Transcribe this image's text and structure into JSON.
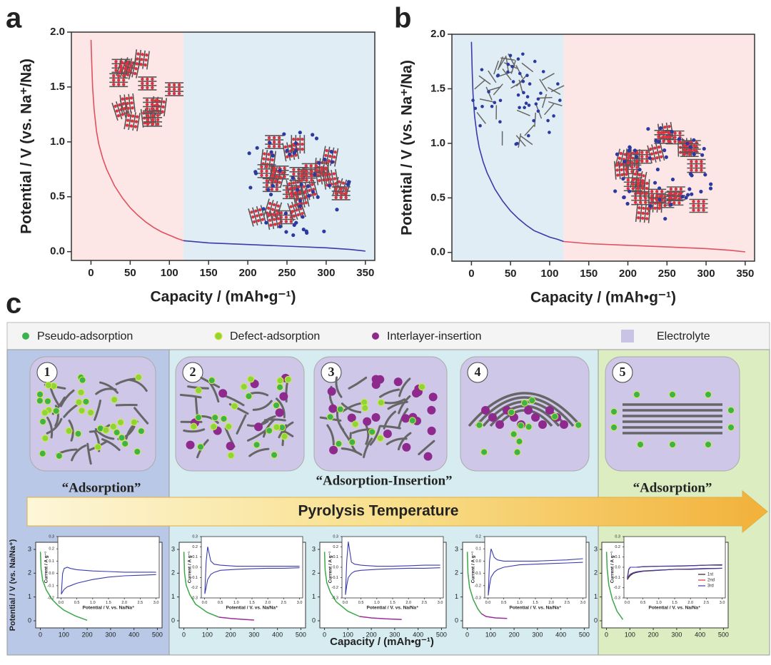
{
  "panels": [
    {
      "label": "a",
      "chart": {
        "type": "line",
        "xlabel": "Capacity / (mAh•g⁻¹)",
        "ylabel": "Potential / V (vs. Na⁺/Na)",
        "xlim": [
          -25,
          362
        ],
        "ylim": [
          -0.08,
          2.0
        ],
        "xticks": [
          0,
          50,
          100,
          150,
          200,
          250,
          300,
          350
        ],
        "yticks": [
          {
            "value": 0,
            "label": "0.0"
          },
          0.5,
          {
            "value": 1,
            "label": "1.0"
          },
          1.5,
          {
            "value": 2,
            "label": "2.0"
          }
        ],
        "regions": [
          {
            "xlim": [
              -25,
              118
            ],
            "color": "#fde6e6"
          },
          {
            "xlim": [
              118,
              362
            ],
            "color": "#e1edf5"
          }
        ],
        "series": [
          {
            "color": "#e0505e",
            "x": [
              0,
              1,
              2,
              4,
              7,
              10,
              15,
              20,
              30,
              40,
              50,
              60,
              70,
              80,
              90,
              100,
              110,
              118
            ],
            "values": [
              1.93,
              1.7,
              1.5,
              1.3,
              1.1,
              0.98,
              0.85,
              0.75,
              0.6,
              0.49,
              0.4,
              0.33,
              0.27,
              0.22,
              0.18,
              0.15,
              0.12,
              0.1
            ]
          },
          {
            "color": "#3a3aa8",
            "x": [
              118,
              150,
              200,
              250,
              300,
              330,
              350
            ],
            "values": [
              0.1,
              0.08,
              0.065,
              0.05,
              0.035,
              0.02,
              0.005
            ]
          }
        ]
      }
    },
    {
      "label": "b",
      "chart": {
        "type": "line",
        "xlabel": "Capacity / (mAh•g⁻¹)",
        "ylabel": "Potential  / V (vs. Na⁺/Na)",
        "xlim": [
          -25,
          362
        ],
        "ylim": [
          -0.08,
          2.0
        ],
        "xticks": [
          0,
          50,
          100,
          150,
          200,
          250,
          300,
          350
        ],
        "yticks": [
          {
            "value": 0,
            "label": "0.0"
          },
          0.5,
          {
            "value": 1,
            "label": "1.0"
          },
          1.5,
          {
            "value": 2,
            "label": "2.0"
          }
        ],
        "regions": [
          {
            "xlim": [
              -25,
              118
            ],
            "color": "#e1edf5"
          },
          {
            "xlim": [
              118,
              362
            ],
            "color": "#fde6e6"
          }
        ],
        "series": [
          {
            "color": "#3a3aa8",
            "x": [
              0,
              1,
              2,
              4,
              7,
              10,
              15,
              20,
              30,
              40,
              50,
              60,
              70,
              80,
              90,
              100,
              110,
              118
            ],
            "values": [
              1.93,
              1.65,
              1.45,
              1.25,
              1.08,
              0.96,
              0.83,
              0.73,
              0.58,
              0.47,
              0.38,
              0.31,
              0.25,
              0.2,
              0.17,
              0.14,
              0.12,
              0.1
            ]
          },
          {
            "color": "#e0505e",
            "x": [
              118,
              150,
              200,
              250,
              300,
              330,
              350
            ],
            "values": [
              0.1,
              0.08,
              0.065,
              0.05,
              0.035,
              0.02,
              0.005
            ]
          }
        ]
      }
    }
  ],
  "panel_c_label": "c",
  "legend": [
    {
      "label": "Pseudo-adsorption",
      "color": "#3cb44b"
    },
    {
      "label": "Defect-adsorption",
      "color": "#8cd63a"
    },
    {
      "label": "Interlayer-insertion",
      "color": "#8e2a8e"
    },
    {
      "label": "Electrolyte",
      "color": "#c9c3e6"
    }
  ],
  "stages": [
    "1",
    "2",
    "3",
    "4",
    "5"
  ],
  "groups": [
    "“Adsorption”",
    "“Adsorption-Insertion”",
    "“Adsorption”"
  ],
  "arrow_label": "Pyrolysis Temperature",
  "cv_ylabel": "Potential / V (vs. Na/Na⁺)",
  "cv_xlabel": "Capacity / (mAh•g⁻¹)",
  "small_charts": [
    {
      "type": "line",
      "xlim": [
        -20,
        520
      ],
      "ylim": [
        -0.3,
        3.3
      ],
      "xticks": [
        0,
        100,
        200,
        300,
        400,
        500
      ],
      "yticks": [
        0,
        1,
        2,
        3
      ],
      "series": [
        {
          "color": "#3ca84a",
          "x": [
            0,
            3,
            10,
            25,
            50,
            75,
            100,
            150,
            200
          ],
          "values": [
            2.9,
            2.2,
            1.7,
            1.3,
            0.9,
            0.65,
            0.45,
            0.2,
            0.02
          ]
        }
      ],
      "inset": {
        "type": "line",
        "ylabel": "Current / A g⁻¹",
        "xlabel": "Potential / V. vs. Na/Na⁺",
        "xlim": [
          -0.1,
          3.1
        ],
        "ylim": [
          -0.2,
          0.3
        ],
        "xticks": [
          {
            "value": 0,
            "label": "0.0"
          },
          0.5,
          {
            "value": 1,
            "label": "1.0"
          },
          1.5,
          {
            "value": 2,
            "label": "2.0"
          },
          2.5,
          {
            "value": 3,
            "label": "3.0"
          }
        ],
        "yticks": [
          -0.2,
          -0.1,
          {
            "value": 0,
            "label": "0.0"
          },
          0.1,
          0.2,
          0.3
        ],
        "x": [
          3,
          2.5,
          2,
          1.5,
          1,
          0.5,
          0.3,
          0.2,
          0.1,
          0.05,
          0.01,
          0.05,
          0.1,
          0.2,
          0.3,
          0.5,
          1,
          1.5,
          2,
          2.5,
          3
        ],
        "series": [
          {
            "color": "#3b3bb0",
            "values": [
              -0.01,
              -0.015,
              -0.02,
              -0.03,
              -0.05,
              -0.08,
              -0.1,
              -0.11,
              -0.13,
              -0.15,
              -0.17,
              0.0,
              0.04,
              0.05,
              0.04,
              0.03,
              0.02,
              0.015,
              0.01,
              0.01,
              0.01
            ]
          }
        ]
      }
    },
    {
      "type": "line",
      "xlim": [
        -20,
        520
      ],
      "ylim": [
        -0.3,
        3.3
      ],
      "xticks": [
        0,
        100,
        200,
        300,
        400,
        500
      ],
      "yticks": [
        0,
        1,
        2,
        3
      ],
      "series": [
        {
          "color": "#3ca84a",
          "x": [
            0,
            3,
            10,
            25,
            50,
            100,
            150
          ],
          "values": [
            2.9,
            2.0,
            1.5,
            1.1,
            0.7,
            0.35,
            0.15
          ]
        },
        {
          "color": "#a02a9a",
          "x": [
            150,
            200,
            250,
            300
          ],
          "values": [
            0.15,
            0.1,
            0.06,
            0.03
          ]
        }
      ],
      "inset": {
        "type": "line",
        "ylabel": "Current / A g⁻¹",
        "xlabel": "Potential / V. vs. Na/Na⁺",
        "xlim": [
          -0.1,
          3.1
        ],
        "ylim": [
          -0.3,
          0.3
        ],
        "xticks": [
          {
            "value": 0,
            "label": "0.0"
          },
          0.5,
          {
            "value": 1,
            "label": "1.0"
          },
          1.5,
          {
            "value": 2,
            "label": "2.0"
          },
          2.5,
          {
            "value": 3,
            "label": "3.0"
          }
        ],
        "yticks": [
          -0.3,
          -0.2,
          -0.1,
          {
            "value": 0,
            "label": "0.0"
          },
          0.1,
          0.2,
          0.3
        ],
        "x": [
          3,
          2.5,
          2,
          1.5,
          1,
          0.5,
          0.3,
          0.2,
          0.1,
          0.05,
          0.01,
          0.05,
          0.1,
          0.2,
          0.3,
          0.5,
          1,
          1.5,
          2,
          2.5,
          3
        ],
        "series": [
          {
            "color": "#3b3bb0",
            "values": [
              -0.005,
              -0.01,
              -0.01,
              -0.015,
              -0.02,
              -0.03,
              -0.05,
              -0.07,
              -0.12,
              -0.2,
              -0.26,
              0.05,
              0.2,
              0.06,
              0.03,
              0.02,
              0.01,
              0.01,
              0.01,
              0.01,
              0.01
            ]
          }
        ]
      }
    },
    {
      "type": "line",
      "xlim": [
        -20,
        520
      ],
      "ylim": [
        -0.3,
        3.3
      ],
      "xticks": [
        0,
        100,
        200,
        300,
        400,
        500
      ],
      "yticks": [
        0,
        1,
        2,
        3
      ],
      "series": [
        {
          "color": "#3ca84a",
          "x": [
            0,
            3,
            10,
            25,
            50,
            100,
            150
          ],
          "values": [
            2.9,
            2.1,
            1.6,
            1.2,
            0.8,
            0.4,
            0.18
          ]
        },
        {
          "color": "#a02a9a",
          "x": [
            150,
            200,
            260,
            330
          ],
          "values": [
            0.18,
            0.12,
            0.08,
            0.05
          ]
        }
      ],
      "inset": {
        "type": "line",
        "ylabel": "Current / A g⁻¹",
        "xlabel": "Potential / V. vs. Na/Na⁺",
        "xlim": [
          -0.1,
          3.1
        ],
        "ylim": [
          -0.3,
          0.3
        ],
        "xticks": [
          {
            "value": 0,
            "label": "0.0"
          },
          0.5,
          {
            "value": 1,
            "label": "1.0"
          },
          1.5,
          {
            "value": 2,
            "label": "2.0"
          },
          2.5,
          {
            "value": 3,
            "label": "3.0"
          }
        ],
        "yticks": [
          -0.3,
          -0.2,
          -0.1,
          {
            "value": 0,
            "label": "0.0"
          },
          0.1,
          0.2,
          0.3
        ],
        "x": [
          3,
          2.5,
          2,
          1.5,
          1,
          0.5,
          0.3,
          0.2,
          0.1,
          0.05,
          0.01,
          0.05,
          0.1,
          0.2,
          0.3,
          0.5,
          1,
          1.5,
          2,
          2.5,
          3
        ],
        "series": [
          {
            "color": "#3b3bb0",
            "values": [
              -0.005,
              -0.01,
              -0.01,
              -0.015,
              -0.02,
              -0.03,
              -0.04,
              -0.06,
              -0.1,
              -0.18,
              -0.27,
              0.06,
              0.25,
              0.05,
              0.03,
              0.02,
              0.01,
              0.01,
              0.015,
              0.02,
              0.02
            ]
          }
        ]
      }
    },
    {
      "type": "line",
      "xlim": [
        -20,
        520
      ],
      "ylim": [
        -0.3,
        3.3
      ],
      "xticks": [
        0,
        100,
        200,
        300,
        400,
        500
      ],
      "yticks": [
        0,
        1,
        2,
        3
      ],
      "series": [
        {
          "color": "#3ca84a",
          "x": [
            0,
            3,
            10,
            25,
            45,
            60
          ],
          "values": [
            2.9,
            2.0,
            1.4,
            0.9,
            0.5,
            0.3
          ]
        },
        {
          "color": "#a02a9a",
          "x": [
            60,
            80,
            120,
            170
          ],
          "values": [
            0.3,
            0.18,
            0.12,
            0.1
          ]
        }
      ],
      "inset": {
        "type": "line",
        "ylabel": "Current / A g⁻¹",
        "xlabel": "Potential / V. vs. Na/Na⁺",
        "xlim": [
          -0.1,
          3.1
        ],
        "ylim": [
          -0.3,
          0.2
        ],
        "xticks": [
          {
            "value": 0,
            "label": "0.0"
          },
          0.5,
          {
            "value": 1,
            "label": "1.0"
          },
          1.5,
          {
            "value": 2,
            "label": "2.0"
          },
          2.5,
          {
            "value": 3,
            "label": "3.0"
          }
        ],
        "yticks": [
          -0.3,
          -0.2,
          -0.1,
          {
            "value": 0,
            "label": "0.0"
          },
          0.1,
          0.2
        ],
        "x": [
          3,
          2.5,
          2,
          1.5,
          1,
          0.5,
          0.3,
          0.2,
          0.1,
          0.05,
          0.01,
          0.05,
          0.1,
          0.2,
          0.3,
          0.5,
          1,
          1.5,
          2,
          2.5,
          3
        ],
        "series": [
          {
            "color": "#3b3bb0",
            "values": [
              -0.01,
              -0.015,
              -0.02,
              -0.025,
              -0.03,
              -0.05,
              -0.07,
              -0.09,
              -0.13,
              -0.2,
              -0.28,
              0.0,
              0.1,
              0.03,
              0.01,
              0.0,
              0.0,
              0.0,
              0.005,
              0.01,
              0.02
            ]
          }
        ]
      }
    },
    {
      "type": "line",
      "xlim": [
        -20,
        520
      ],
      "ylim": [
        -0.3,
        3.3
      ],
      "xticks": [
        0,
        100,
        200,
        300,
        400,
        500
      ],
      "yticks": [
        0,
        1,
        2,
        3
      ],
      "series": [
        {
          "color": "#3ca84a",
          "x": [
            0,
            3,
            10,
            25,
            45,
            70
          ],
          "values": [
            2.9,
            2.2,
            1.5,
            0.9,
            0.4,
            0.05
          ]
        }
      ],
      "inset": {
        "type": "line",
        "ylabel": "Current / A g⁻¹",
        "xlabel": "Potential / V. vs. Na/Na⁺",
        "xlim": [
          -0.1,
          3.1
        ],
        "ylim": [
          -0.3,
          0.3
        ],
        "xticks": [
          {
            "value": 0,
            "label": "0.0"
          },
          0.5,
          {
            "value": 1,
            "label": "1.0"
          },
          1.5,
          {
            "value": 2,
            "label": "2.0"
          },
          2.5,
          {
            "value": 3,
            "label": "3.0"
          }
        ],
        "yticks": [
          -0.3,
          -0.2,
          -0.1,
          {
            "value": 0,
            "label": "0.0"
          },
          0.1,
          0.2,
          0.3
        ],
        "x": [
          3,
          2.5,
          2,
          1.5,
          1,
          0.5,
          0.3,
          0.2,
          0.1,
          0.05,
          0.01,
          0.05,
          0.1,
          0.2,
          0.3,
          0.5,
          1,
          1.5,
          2,
          2.5,
          3
        ],
        "legend": true,
        "series": [
          {
            "name": "1st",
            "color": "#222222",
            "values": [
              -0.01,
              -0.015,
              -0.02,
              -0.02,
              -0.03,
              -0.04,
              -0.05,
              -0.06,
              -0.08,
              -0.1,
              -0.12,
              -0.02,
              0.0,
              0.0,
              0.0,
              0.005,
              0.01,
              0.01,
              0.015,
              0.02,
              0.02
            ]
          },
          {
            "name": "2nd",
            "color": "#e03030",
            "values": [
              -0.01,
              -0.012,
              -0.018,
              -0.02,
              -0.028,
              -0.038,
              -0.045,
              -0.055,
              -0.07,
              -0.09,
              -0.11,
              -0.02,
              0.0,
              0.0,
              0.0,
              0.005,
              0.01,
              0.012,
              0.015,
              0.02,
              0.025
            ]
          },
          {
            "name": "3rd",
            "color": "#3b3bb0",
            "values": [
              -0.01,
              -0.012,
              -0.017,
              -0.02,
              -0.027,
              -0.036,
              -0.044,
              -0.052,
              -0.068,
              -0.088,
              -0.1,
              -0.02,
              0.0,
              0.0,
              0.0,
              0.006,
              0.01,
              0.012,
              0.016,
              0.02,
              0.025
            ]
          }
        ]
      }
    }
  ]
}
